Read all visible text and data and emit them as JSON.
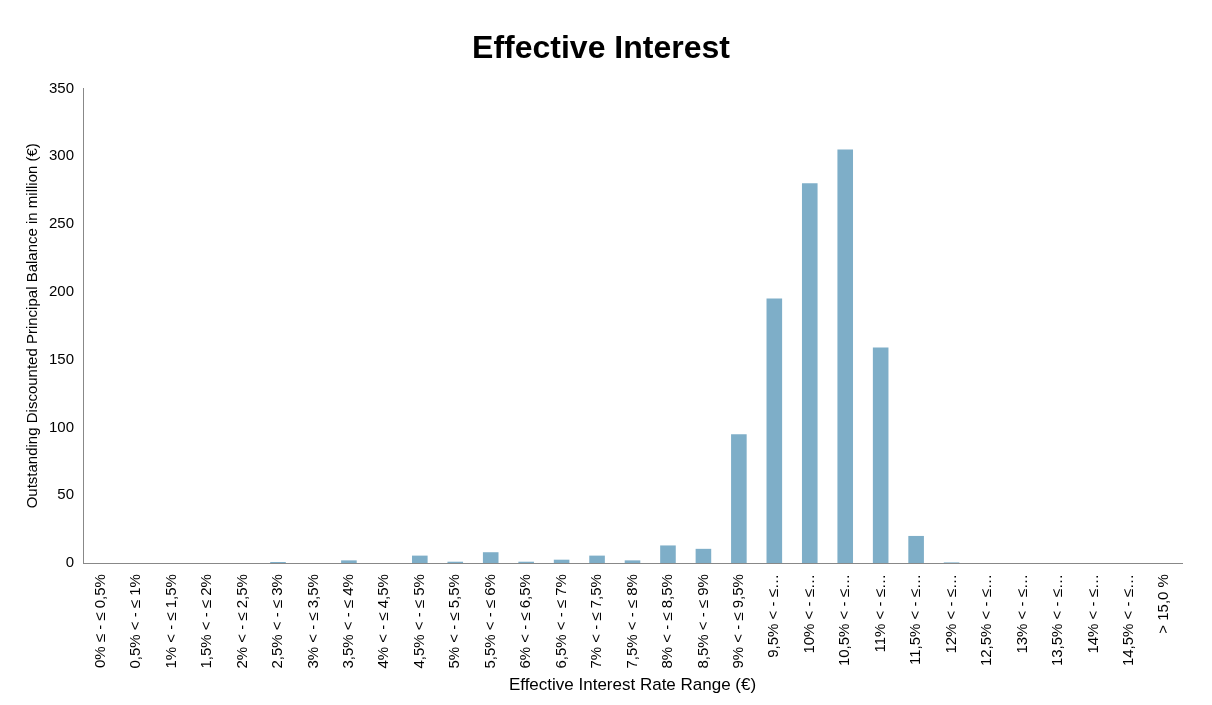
{
  "chart_data": {
    "type": "bar",
    "title": "Effective Interest",
    "xlabel": "Effective Interest Rate Range (€)",
    "ylabel": "Outstanding Discounted Principal Balance in million (€)",
    "categories": [
      "0% ≤ - ≤ 0,5%",
      "0,5% < - ≤ 1%",
      "1% < - ≤ 1,5%",
      "1,5% < - ≤ 2%",
      "2% < - ≤ 2,5%",
      "2,5% < - ≤ 3%",
      "3% < - ≤ 3,5%",
      "3,5% < - ≤ 4%",
      "4% < - ≤ 4,5%",
      "4,5% < - ≤ 5%",
      "5% < - ≤ 5,5%",
      "5,5% < - ≤ 6%",
      "6% < - ≤ 6,5%",
      "6,5% < - ≤ 7%",
      "7% < - ≤ 7,5%",
      "7,5% < - ≤ 8%",
      "8% < - ≤ 8,5%",
      "8,5% < - ≤ 9%",
      "9% < - ≤ 9,5%",
      "9,5% < - ≤…",
      "10% < - ≤…",
      "10,5% < - ≤…",
      "11% < - ≤…",
      "11,5% < - ≤…",
      "12% < - ≤…",
      "12,5% < - ≤…",
      "13% < - ≤…",
      "13,5% < - ≤…",
      "14% < - ≤…",
      "14,5% < - ≤…",
      "> 15,0 %"
    ],
    "values": [
      0,
      0,
      0,
      0,
      0,
      0.8,
      0,
      2,
      0,
      5.5,
      1,
      8,
      1,
      2.5,
      5.5,
      2,
      13,
      10.5,
      95,
      195,
      280,
      305,
      159,
      20,
      0.5,
      0,
      0,
      0,
      0,
      0,
      0
    ],
    "color": "#7eaec8",
    "ylim": [
      0,
      350
    ],
    "yticks": [
      0,
      50,
      100,
      150,
      200,
      250,
      300,
      350
    ],
    "grid": false,
    "legend": false
  }
}
